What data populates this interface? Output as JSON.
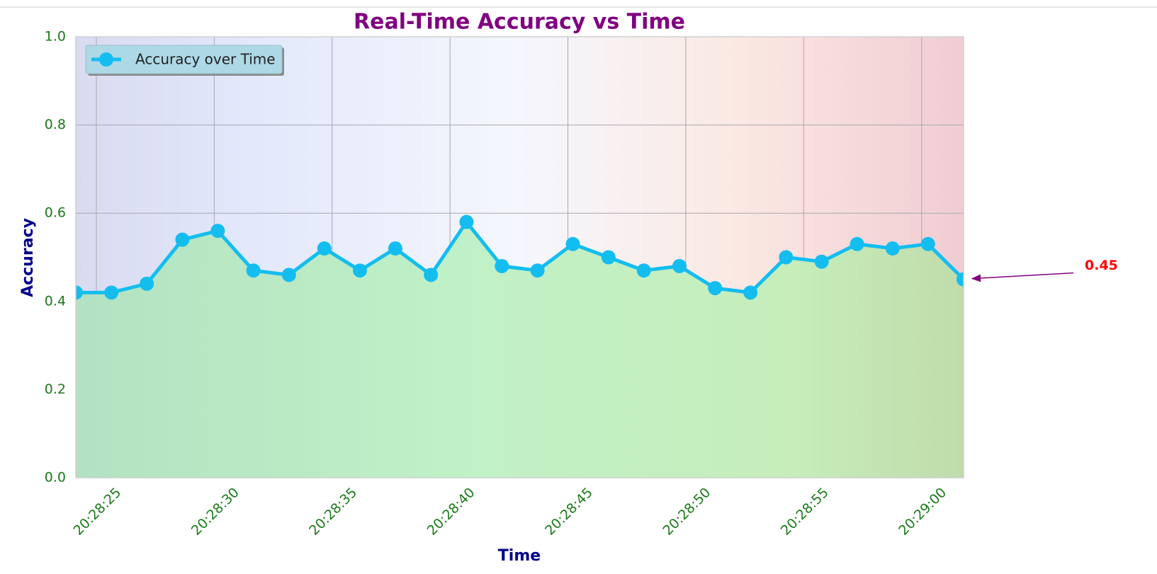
{
  "chart_data": {
    "type": "line",
    "title": "Real-Time Accuracy vs Time",
    "xlabel": "Time",
    "ylabel": "Accuracy",
    "annotation": "0.45",
    "x": [
      24.13,
      25.64,
      27.14,
      28.65,
      30.15,
      31.66,
      33.17,
      34.67,
      36.18,
      37.68,
      39.19,
      40.7,
      42.2,
      43.71,
      45.21,
      46.72,
      48.22,
      49.73,
      51.24,
      52.74,
      54.25,
      55.76,
      57.26,
      58.77,
      60.27,
      61.78
    ],
    "series": [
      {
        "name": "Accuracy over Time",
        "color": "#14bdf0",
        "values": [
          0.42,
          0.42,
          0.44,
          0.54,
          0.56,
          0.47,
          0.46,
          0.52,
          0.47,
          0.52,
          0.46,
          0.58,
          0.48,
          0.47,
          0.53,
          0.5,
          0.47,
          0.48,
          0.43,
          0.42,
          0.5,
          0.49,
          0.53,
          0.52,
          0.53,
          0.45
        ]
      }
    ],
    "xlim": [
      24.13,
      61.78
    ],
    "xticks": [
      {
        "value": 25,
        "label": "20:28:25"
      },
      {
        "value": 30,
        "label": "20:28:30"
      },
      {
        "value": 35,
        "label": "20:28:35"
      },
      {
        "value": 40,
        "label": "20:28:40"
      },
      {
        "value": 45,
        "label": "20:28:45"
      },
      {
        "value": 50,
        "label": "20:28:50"
      },
      {
        "value": 55,
        "label": "20:28:55"
      },
      {
        "value": 60,
        "label": "20:29:00"
      }
    ],
    "ylim": [
      0,
      1
    ],
    "yticks": [
      {
        "value": 0,
        "label": "0.0"
      },
      {
        "value": 0.2,
        "label": "0.2"
      },
      {
        "value": 0.4,
        "label": "0.4"
      },
      {
        "value": 0.6,
        "label": "0.6"
      },
      {
        "value": 0.8,
        "label": "0.8"
      },
      {
        "value": 1,
        "label": "1.0"
      }
    ],
    "grid": true,
    "legend": "upper left"
  }
}
